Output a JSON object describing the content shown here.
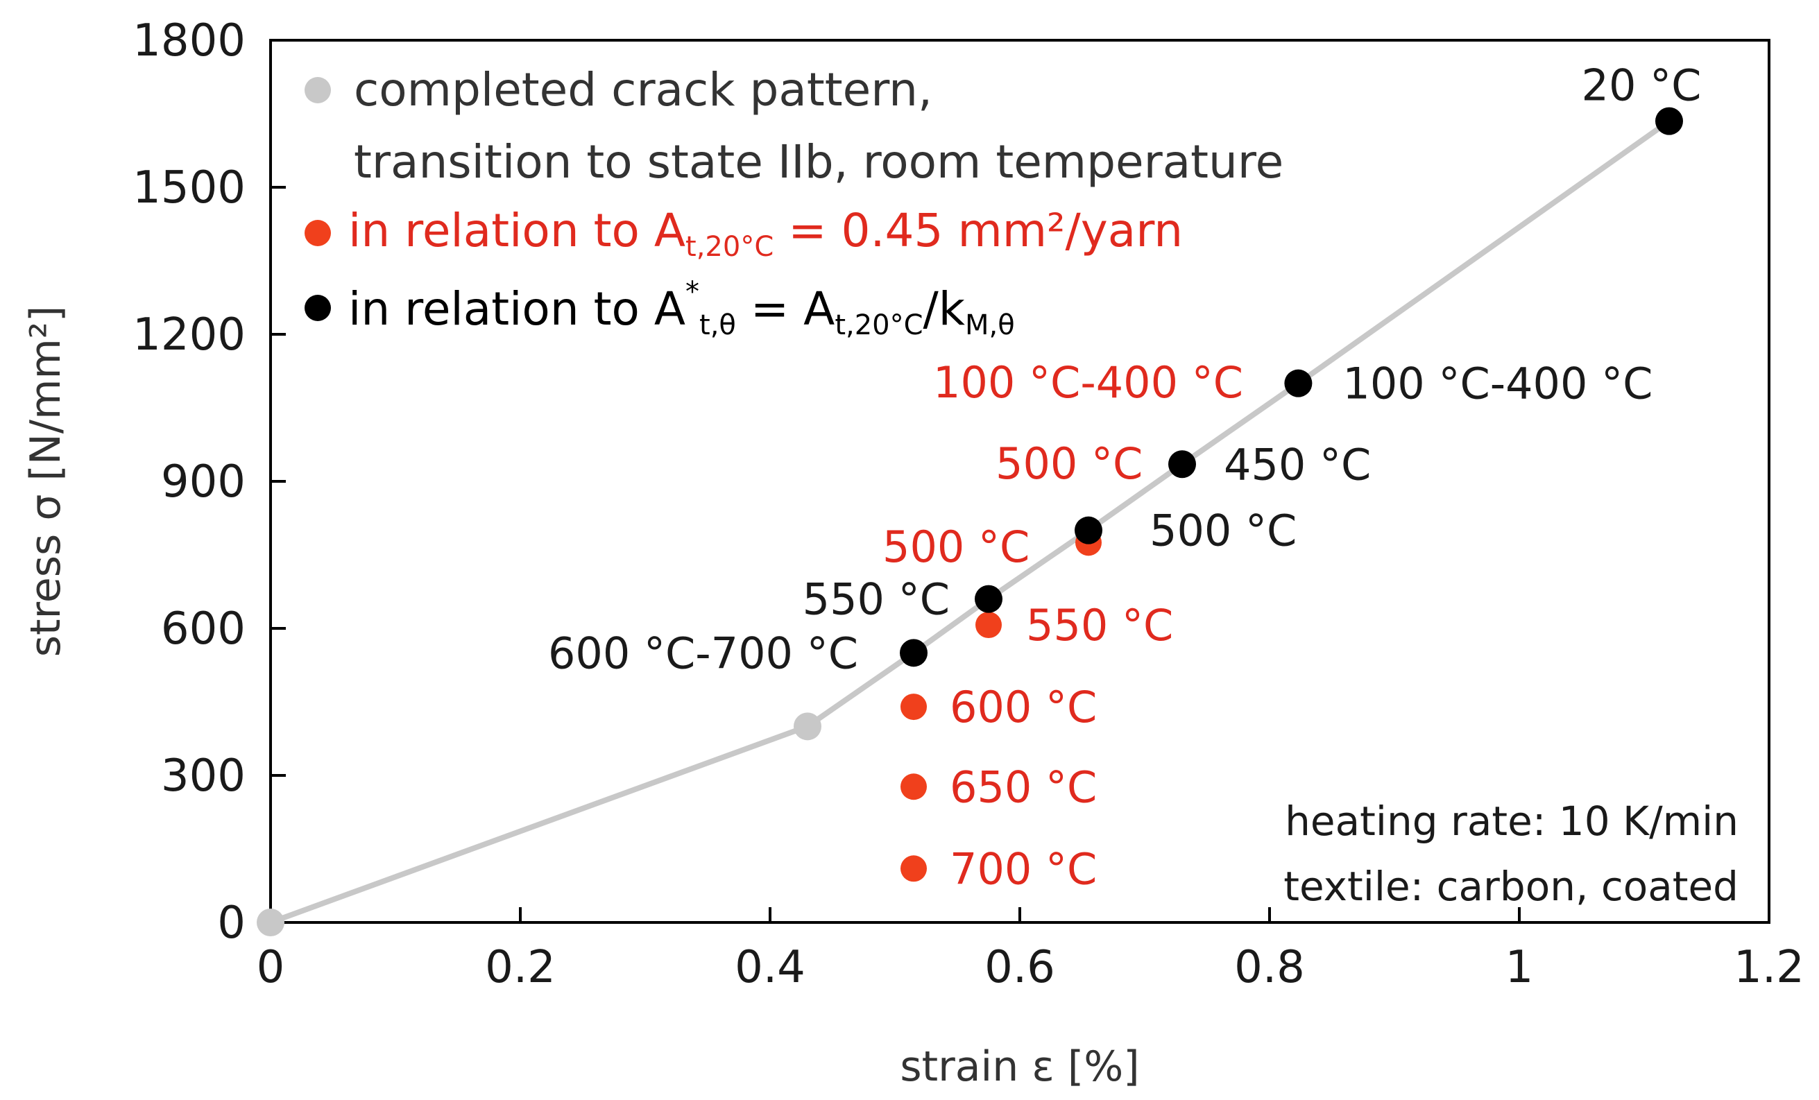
{
  "chart_data": {
    "type": "scatter",
    "xlabel": "strain ε [%]",
    "ylabel": "stress σ [N/mm²]",
    "xlim": [
      0,
      1.2
    ],
    "ylim": [
      0,
      1800
    ],
    "xticks": [
      0,
      0.2,
      0.4,
      0.6,
      0.8,
      1,
      1.2
    ],
    "xtick_labels": [
      "0",
      "0.2",
      "0.4",
      "0.6",
      "0.8",
      "1",
      "1.2"
    ],
    "yticks": [
      0,
      300,
      600,
      900,
      1200,
      1500,
      1800
    ],
    "ytick_labels": [
      "0",
      "300",
      "600",
      "900",
      "1200",
      "1500",
      "1800"
    ],
    "grid": false,
    "legend": {
      "position": "top-left",
      "gray_line1": "completed crack pattern,",
      "gray_line2": "transition to state IIb, room temperature",
      "red_prefix": "in relation to A",
      "red_sub": "t,20°C",
      "red_suffix": " = 0.45 mm²/yarn",
      "black_prefix": "in relation to A",
      "black_sup": "*",
      "black_sub1": "t,θ",
      "black_mid": " = A",
      "black_sub2": "t,20°C",
      "black_mid2": "/k",
      "black_sub3": "M,θ"
    },
    "colors": {
      "gray": "#c8c8c8",
      "red": "#f0401c",
      "black": "#000000",
      "redtext": "#e02a1e"
    },
    "series": [
      {
        "name": "completed crack pattern (line)",
        "type": "line",
        "points": [
          {
            "x": 0,
            "y": 0
          },
          {
            "x": 0.43,
            "y": 400
          },
          {
            "x": 0.515,
            "y": 550
          },
          {
            "x": 0.575,
            "y": 660
          },
          {
            "x": 0.655,
            "y": 800
          },
          {
            "x": 0.73,
            "y": 935
          },
          {
            "x": 0.823,
            "y": 1100
          },
          {
            "x": 1.12,
            "y": 1635
          }
        ]
      },
      {
        "name": "completed crack pattern, room temperature",
        "type": "scatter",
        "color": "gray",
        "points": [
          {
            "x": 0,
            "y": 0
          },
          {
            "x": 0.43,
            "y": 400
          }
        ]
      },
      {
        "name": "in relation to A_t,20°C",
        "type": "scatter",
        "color": "red",
        "points": [
          {
            "x": 0.655,
            "y": 775,
            "label": "500 °C"
          },
          {
            "x": 0.575,
            "y": 607,
            "label": "550 °C"
          },
          {
            "x": 0.515,
            "y": 440,
            "label": "600 °C"
          },
          {
            "x": 0.515,
            "y": 277,
            "label": "650 °C"
          },
          {
            "x": 0.515,
            "y": 110,
            "label": "700 °C"
          }
        ]
      },
      {
        "name": "in relation to A*_t,θ",
        "type": "scatter",
        "color": "black",
        "points": [
          {
            "x": 1.12,
            "y": 1635,
            "label": "20 °C"
          },
          {
            "x": 0.823,
            "y": 1100,
            "label": "100 °C-400 °C"
          },
          {
            "x": 0.73,
            "y": 935,
            "label": "450 °C"
          },
          {
            "x": 0.655,
            "y": 800,
            "label": "500 °C"
          },
          {
            "x": 0.575,
            "y": 660,
            "label": "550 °C"
          },
          {
            "x": 0.515,
            "y": 550,
            "label": "600 °C-700 °C"
          }
        ]
      }
    ],
    "annotations": [
      {
        "text": "100 °C-400 °C",
        "color": "red"
      },
      {
        "text": "500 °C",
        "color": "red"
      },
      {
        "text": "500 °C",
        "color": "red"
      }
    ],
    "notes": [
      "heating rate: 10 K/min",
      "textile: carbon, coated"
    ]
  }
}
